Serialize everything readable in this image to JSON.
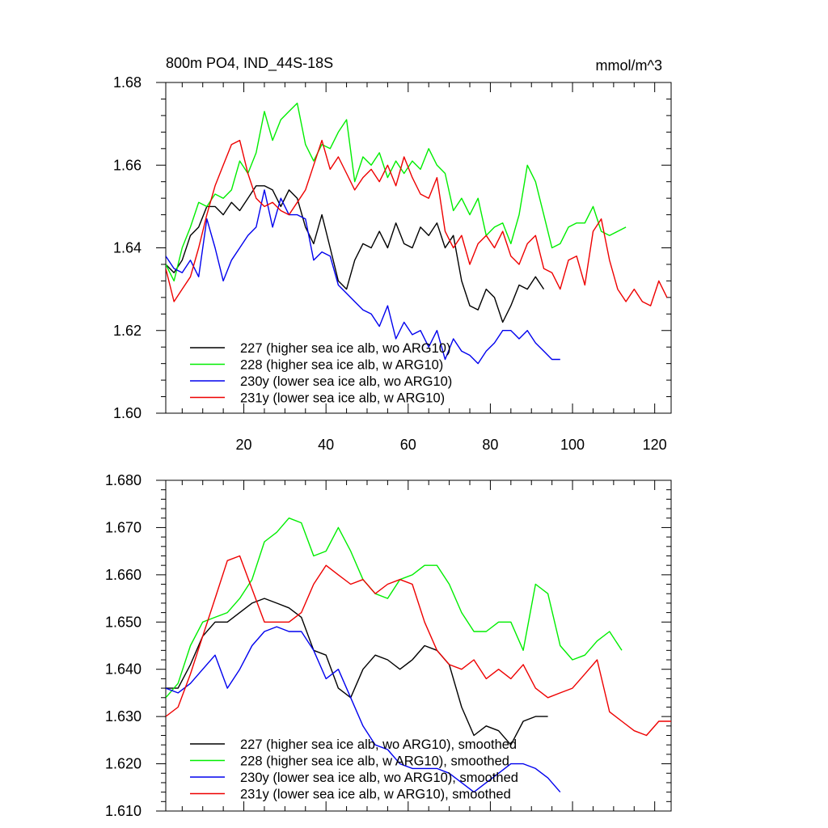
{
  "chart_data": [
    {
      "type": "line",
      "title": "800m PO4, IND_44S-18S",
      "units": "mmol/m^3",
      "xlim": [
        1,
        124
      ],
      "ylim": [
        1.6,
        1.68
      ],
      "xticks": [
        20,
        40,
        60,
        80,
        100,
        120
      ],
      "xtick_labels": [
        "20",
        "40",
        "60",
        "80",
        "100",
        "120"
      ],
      "yticks": [
        1.6,
        1.62,
        1.64,
        1.66,
        1.68
      ],
      "ytick_labels": [
        "1.60",
        "1.62",
        "1.64",
        "1.66",
        "1.68"
      ],
      "grid": false,
      "legend_position": "bottom-left",
      "series": [
        {
          "name": "227 (higher sea ice alb, wo ARG10)",
          "color": "#000000",
          "x": [
            1,
            3,
            5,
            7,
            9,
            11,
            13,
            15,
            17,
            19,
            21,
            23,
            25,
            27,
            29,
            31,
            33,
            35,
            37,
            39,
            41,
            43,
            45,
            47,
            49,
            51,
            53,
            55,
            57,
            59,
            61,
            63,
            65,
            67,
            69,
            71,
            73,
            75,
            77,
            79,
            81,
            83,
            85,
            87,
            89,
            91,
            93
          ],
          "y": [
            1.636,
            1.634,
            1.637,
            1.643,
            1.645,
            1.65,
            1.65,
            1.648,
            1.651,
            1.649,
            1.652,
            1.655,
            1.655,
            1.654,
            1.65,
            1.654,
            1.652,
            1.645,
            1.641,
            1.648,
            1.64,
            1.632,
            1.63,
            1.637,
            1.641,
            1.64,
            1.644,
            1.64,
            1.646,
            1.641,
            1.64,
            1.645,
            1.643,
            1.646,
            1.64,
            1.643,
            1.632,
            1.626,
            1.625,
            1.63,
            1.628,
            1.622,
            1.626,
            1.631,
            1.63,
            1.633,
            1.63
          ]
        },
        {
          "name": "228 (higher sea ice alb, w ARG10)",
          "color": "#00ee00",
          "x": [
            1,
            3,
            5,
            7,
            9,
            11,
            13,
            15,
            17,
            19,
            21,
            23,
            25,
            27,
            29,
            31,
            33,
            35,
            37,
            39,
            41,
            43,
            45,
            47,
            49,
            51,
            53,
            55,
            57,
            59,
            61,
            63,
            65,
            67,
            69,
            71,
            73,
            75,
            77,
            79,
            81,
            83,
            85,
            87,
            89,
            91,
            93,
            95,
            97,
            99,
            101,
            103,
            105,
            107,
            109,
            111,
            113
          ],
          "y": [
            1.636,
            1.632,
            1.64,
            1.645,
            1.651,
            1.65,
            1.653,
            1.652,
            1.654,
            1.661,
            1.658,
            1.663,
            1.673,
            1.666,
            1.671,
            1.673,
            1.675,
            1.665,
            1.661,
            1.665,
            1.664,
            1.668,
            1.671,
            1.656,
            1.662,
            1.66,
            1.663,
            1.657,
            1.661,
            1.658,
            1.661,
            1.659,
            1.664,
            1.66,
            1.658,
            1.649,
            1.652,
            1.648,
            1.652,
            1.643,
            1.645,
            1.646,
            1.641,
            1.648,
            1.66,
            1.656,
            1.648,
            1.64,
            1.641,
            1.645,
            1.646,
            1.646,
            1.65,
            1.644,
            1.643,
            1.644,
            1.645
          ]
        },
        {
          "name": "230y (lower sea ice alb, wo ARG10)",
          "color": "#0000ee",
          "x": [
            1,
            3,
            5,
            7,
            9,
            11,
            13,
            15,
            17,
            19,
            21,
            23,
            25,
            27,
            29,
            31,
            33,
            35,
            37,
            39,
            41,
            43,
            45,
            47,
            49,
            51,
            53,
            55,
            57,
            59,
            61,
            63,
            65,
            67,
            69,
            71,
            73,
            75,
            77,
            79,
            81,
            83,
            85,
            87,
            89,
            91,
            93,
            95,
            97
          ],
          "y": [
            1.638,
            1.635,
            1.634,
            1.637,
            1.633,
            1.647,
            1.64,
            1.632,
            1.637,
            1.64,
            1.643,
            1.645,
            1.654,
            1.645,
            1.652,
            1.648,
            1.648,
            1.647,
            1.637,
            1.639,
            1.638,
            1.631,
            1.629,
            1.627,
            1.625,
            1.624,
            1.621,
            1.626,
            1.618,
            1.622,
            1.619,
            1.62,
            1.616,
            1.62,
            1.613,
            1.618,
            1.615,
            1.614,
            1.612,
            1.615,
            1.617,
            1.62,
            1.62,
            1.618,
            1.62,
            1.617,
            1.615,
            1.613,
            1.613
          ]
        },
        {
          "name": "231y (lower sea ice alb, w ARG10)",
          "color": "#ee0000",
          "x": [
            1,
            3,
            5,
            7,
            9,
            11,
            13,
            15,
            17,
            19,
            21,
            23,
            25,
            27,
            29,
            31,
            33,
            35,
            37,
            39,
            41,
            43,
            45,
            47,
            49,
            51,
            53,
            55,
            57,
            59,
            61,
            63,
            65,
            67,
            69,
            71,
            73,
            75,
            77,
            79,
            81,
            83,
            85,
            87,
            89,
            91,
            93,
            95,
            97,
            99,
            101,
            103,
            105,
            107,
            109,
            111,
            113,
            115,
            117,
            119,
            121,
            123
          ],
          "y": [
            1.635,
            1.627,
            1.63,
            1.633,
            1.64,
            1.648,
            1.655,
            1.66,
            1.665,
            1.666,
            1.658,
            1.652,
            1.65,
            1.651,
            1.649,
            1.648,
            1.651,
            1.654,
            1.66,
            1.666,
            1.659,
            1.662,
            1.658,
            1.654,
            1.657,
            1.659,
            1.656,
            1.66,
            1.655,
            1.662,
            1.657,
            1.653,
            1.652,
            1.657,
            1.644,
            1.64,
            1.643,
            1.636,
            1.641,
            1.643,
            1.64,
            1.644,
            1.638,
            1.636,
            1.641,
            1.643,
            1.635,
            1.634,
            1.63,
            1.637,
            1.638,
            1.631,
            1.644,
            1.647,
            1.637,
            1.63,
            1.627,
            1.63,
            1.627,
            1.626,
            1.632,
            1.628
          ]
        }
      ]
    },
    {
      "type": "line",
      "xlim": [
        1,
        124
      ],
      "ylim": [
        1.61,
        1.68
      ],
      "xticks": [
        20,
        40,
        60,
        80,
        100,
        120
      ],
      "yticks": [
        1.61,
        1.62,
        1.63,
        1.64,
        1.65,
        1.66,
        1.67,
        1.68
      ],
      "ytick_labels": [
        "1.610",
        "1.620",
        "1.630",
        "1.640",
        "1.650",
        "1.660",
        "1.670",
        "1.680"
      ],
      "grid": false,
      "legend_position": "bottom-left",
      "series": [
        {
          "name": "227 (higher sea ice alb, wo ARG10), smoothed",
          "color": "#000000",
          "x": [
            1,
            4,
            7,
            10,
            13,
            16,
            19,
            22,
            25,
            28,
            31,
            34,
            37,
            40,
            43,
            46,
            49,
            52,
            55,
            58,
            61,
            64,
            67,
            70,
            73,
            76,
            79,
            82,
            85,
            88,
            91,
            94
          ],
          "y": [
            1.636,
            1.636,
            1.641,
            1.647,
            1.65,
            1.65,
            1.652,
            1.654,
            1.655,
            1.654,
            1.653,
            1.651,
            1.644,
            1.643,
            1.636,
            1.634,
            1.64,
            1.643,
            1.642,
            1.64,
            1.642,
            1.645,
            1.644,
            1.641,
            1.632,
            1.626,
            1.628,
            1.627,
            1.624,
            1.629,
            1.63,
            1.63
          ]
        },
        {
          "name": "228 (higher sea ice alb, w ARG10), smoothed",
          "color": "#00ee00",
          "x": [
            1,
            4,
            7,
            10,
            13,
            16,
            19,
            22,
            25,
            28,
            31,
            34,
            37,
            40,
            43,
            46,
            49,
            52,
            55,
            58,
            61,
            64,
            67,
            70,
            73,
            76,
            79,
            82,
            85,
            88,
            91,
            94,
            97,
            100,
            103,
            106,
            109,
            112
          ],
          "y": [
            1.634,
            1.637,
            1.645,
            1.65,
            1.651,
            1.652,
            1.655,
            1.659,
            1.667,
            1.669,
            1.672,
            1.671,
            1.664,
            1.665,
            1.67,
            1.665,
            1.659,
            1.656,
            1.655,
            1.659,
            1.66,
            1.662,
            1.662,
            1.658,
            1.652,
            1.648,
            1.648,
            1.65,
            1.65,
            1.644,
            1.658,
            1.656,
            1.645,
            1.642,
            1.643,
            1.646,
            1.648,
            1.644
          ]
        },
        {
          "name": "230y (lower sea ice alb, wo ARG10), smoothed",
          "color": "#0000ee",
          "x": [
            1,
            4,
            7,
            10,
            13,
            16,
            19,
            22,
            25,
            28,
            31,
            34,
            37,
            40,
            43,
            46,
            49,
            52,
            55,
            58,
            61,
            64,
            67,
            70,
            73,
            76,
            79,
            82,
            85,
            88,
            91,
            94,
            97
          ],
          "y": [
            1.636,
            1.635,
            1.637,
            1.64,
            1.643,
            1.636,
            1.64,
            1.645,
            1.648,
            1.649,
            1.648,
            1.648,
            1.644,
            1.638,
            1.64,
            1.634,
            1.628,
            1.624,
            1.623,
            1.62,
            1.619,
            1.619,
            1.619,
            1.618,
            1.616,
            1.614,
            1.616,
            1.618,
            1.62,
            1.62,
            1.619,
            1.617,
            1.614
          ]
        },
        {
          "name": "231y (lower sea ice alb, w ARG10), smoothed",
          "color": "#ee0000",
          "x": [
            1,
            4,
            7,
            10,
            13,
            16,
            19,
            22,
            25,
            28,
            31,
            34,
            37,
            40,
            43,
            46,
            49,
            52,
            55,
            58,
            61,
            64,
            67,
            70,
            73,
            76,
            79,
            82,
            85,
            88,
            91,
            94,
            97,
            100,
            103,
            106,
            109,
            112,
            115,
            118,
            121,
            124
          ],
          "y": [
            1.63,
            1.632,
            1.639,
            1.647,
            1.655,
            1.663,
            1.664,
            1.657,
            1.65,
            1.65,
            1.65,
            1.652,
            1.658,
            1.662,
            1.66,
            1.658,
            1.659,
            1.656,
            1.658,
            1.659,
            1.658,
            1.65,
            1.644,
            1.641,
            1.64,
            1.642,
            1.638,
            1.64,
            1.638,
            1.641,
            1.636,
            1.634,
            1.635,
            1.636,
            1.639,
            1.642,
            1.631,
            1.629,
            1.627,
            1.626,
            1.629,
            1.629
          ]
        }
      ]
    }
  ]
}
